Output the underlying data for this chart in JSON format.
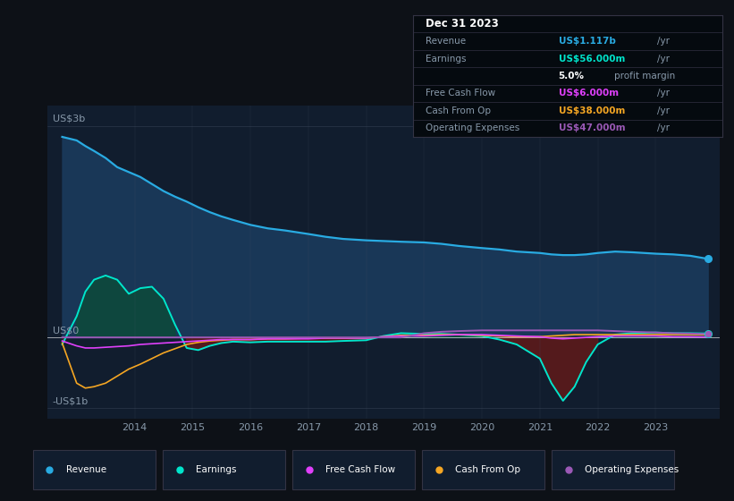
{
  "bg_color": "#0d1117",
  "plot_bg_color": "#111d2e",
  "title_box_bg": "#050a0f",
  "ylabel_top": "US$3b",
  "ylabel_zero": "US$0",
  "ylabel_bottom": "-US$1b",
  "x_labels": [
    "2014",
    "2015",
    "2016",
    "2017",
    "2018",
    "2019",
    "2020",
    "2021",
    "2022",
    "2023"
  ],
  "colors": {
    "revenue": "#29abe2",
    "earnings": "#00e5cc",
    "free_cash_flow": "#e040fb",
    "cash_from_op": "#f5a623",
    "operating_expenses": "#9b59b6",
    "revenue_fill": "#1a3a5c",
    "earnings_pos_fill": "#0d4a3a",
    "earnings_neg_fill": "#5c1a1a"
  },
  "legend": [
    {
      "label": "Revenue",
      "color": "#29abe2"
    },
    {
      "label": "Earnings",
      "color": "#00e5cc"
    },
    {
      "label": "Free Cash Flow",
      "color": "#e040fb"
    },
    {
      "label": "Cash From Op",
      "color": "#f5a623"
    },
    {
      "label": "Operating Expenses",
      "color": "#9b59b6"
    }
  ],
  "title_box": {
    "date": "Dec 31 2023",
    "rows": [
      {
        "label": "Revenue",
        "value": "US$1.117b",
        "value_color": "#29abe2",
        "suffix": " /yr"
      },
      {
        "label": "Earnings",
        "value": "US$56.000m",
        "value_color": "#00e5cc",
        "suffix": " /yr"
      },
      {
        "label": "",
        "value": "5.0%",
        "value_color": "#ffffff",
        "suffix": " profit margin"
      },
      {
        "label": "Free Cash Flow",
        "value": "US$6.000m",
        "value_color": "#e040fb",
        "suffix": " /yr"
      },
      {
        "label": "Cash From Op",
        "value": "US$38.000m",
        "value_color": "#f5a623",
        "suffix": " /yr"
      },
      {
        "label": "Operating Expenses",
        "value": "US$47.000m",
        "value_color": "#9b59b6",
        "suffix": " /yr"
      }
    ]
  },
  "years": [
    2012.75,
    2013.0,
    2013.15,
    2013.3,
    2013.5,
    2013.7,
    2013.9,
    2014.1,
    2014.3,
    2014.5,
    2014.7,
    2014.9,
    2015.1,
    2015.3,
    2015.5,
    2015.7,
    2016.0,
    2016.3,
    2016.6,
    2017.0,
    2017.3,
    2017.6,
    2018.0,
    2018.3,
    2018.6,
    2019.0,
    2019.3,
    2019.6,
    2020.0,
    2020.3,
    2020.6,
    2021.0,
    2021.2,
    2021.4,
    2021.6,
    2021.8,
    2022.0,
    2022.3,
    2022.6,
    2023.0,
    2023.3,
    2023.6,
    2023.9
  ],
  "revenue": [
    2.85,
    2.8,
    2.72,
    2.65,
    2.55,
    2.42,
    2.35,
    2.28,
    2.18,
    2.08,
    2.0,
    1.93,
    1.85,
    1.78,
    1.72,
    1.67,
    1.6,
    1.55,
    1.52,
    1.47,
    1.43,
    1.4,
    1.38,
    1.37,
    1.36,
    1.35,
    1.33,
    1.3,
    1.27,
    1.25,
    1.22,
    1.2,
    1.18,
    1.17,
    1.17,
    1.18,
    1.2,
    1.22,
    1.21,
    1.19,
    1.18,
    1.16,
    1.117
  ],
  "earnings": [
    -0.1,
    0.3,
    0.65,
    0.82,
    0.88,
    0.82,
    0.62,
    0.7,
    0.72,
    0.55,
    0.18,
    -0.15,
    -0.18,
    -0.12,
    -0.08,
    -0.06,
    -0.07,
    -0.06,
    -0.06,
    -0.06,
    -0.06,
    -0.05,
    -0.04,
    0.02,
    0.06,
    0.05,
    0.05,
    0.04,
    0.02,
    -0.03,
    -0.1,
    -0.3,
    -0.65,
    -0.9,
    -0.7,
    -0.35,
    -0.1,
    0.04,
    0.06,
    0.07,
    0.06,
    0.06,
    0.056
  ],
  "free_cash_flow": [
    -0.05,
    -0.12,
    -0.15,
    -0.15,
    -0.14,
    -0.13,
    -0.12,
    -0.1,
    -0.09,
    -0.08,
    -0.07,
    -0.06,
    -0.05,
    -0.04,
    -0.03,
    -0.03,
    -0.03,
    -0.02,
    -0.02,
    -0.02,
    -0.01,
    -0.01,
    -0.01,
    0.01,
    0.02,
    0.02,
    0.03,
    0.04,
    0.04,
    0.03,
    0.02,
    0.01,
    -0.01,
    -0.02,
    -0.01,
    0.0,
    0.01,
    0.02,
    0.02,
    0.02,
    0.01,
    0.01,
    0.006
  ],
  "cash_from_op": [
    -0.08,
    -0.65,
    -0.72,
    -0.7,
    -0.65,
    -0.55,
    -0.45,
    -0.38,
    -0.3,
    -0.22,
    -0.16,
    -0.1,
    -0.07,
    -0.05,
    -0.04,
    -0.03,
    -0.03,
    -0.02,
    -0.02,
    -0.01,
    -0.01,
    -0.01,
    -0.01,
    0.01,
    0.03,
    0.03,
    0.04,
    0.04,
    0.03,
    0.02,
    0.01,
    0.01,
    0.02,
    0.03,
    0.04,
    0.04,
    0.04,
    0.04,
    0.04,
    0.04,
    0.04,
    0.04,
    0.038
  ],
  "operating_expenses": [
    0.0,
    0.0,
    0.0,
    0.0,
    0.0,
    0.0,
    0.0,
    0.0,
    0.0,
    0.0,
    0.0,
    0.0,
    0.0,
    0.0,
    0.0,
    0.0,
    0.0,
    0.0,
    0.0,
    0.0,
    0.0,
    0.0,
    0.0,
    0.0,
    0.0,
    0.06,
    0.08,
    0.09,
    0.1,
    0.1,
    0.1,
    0.1,
    0.1,
    0.1,
    0.1,
    0.1,
    0.1,
    0.09,
    0.08,
    0.07,
    0.06,
    0.055,
    0.047
  ],
  "ylim": [
    -1.15,
    3.3
  ],
  "xlim": [
    2012.5,
    2024.1
  ]
}
